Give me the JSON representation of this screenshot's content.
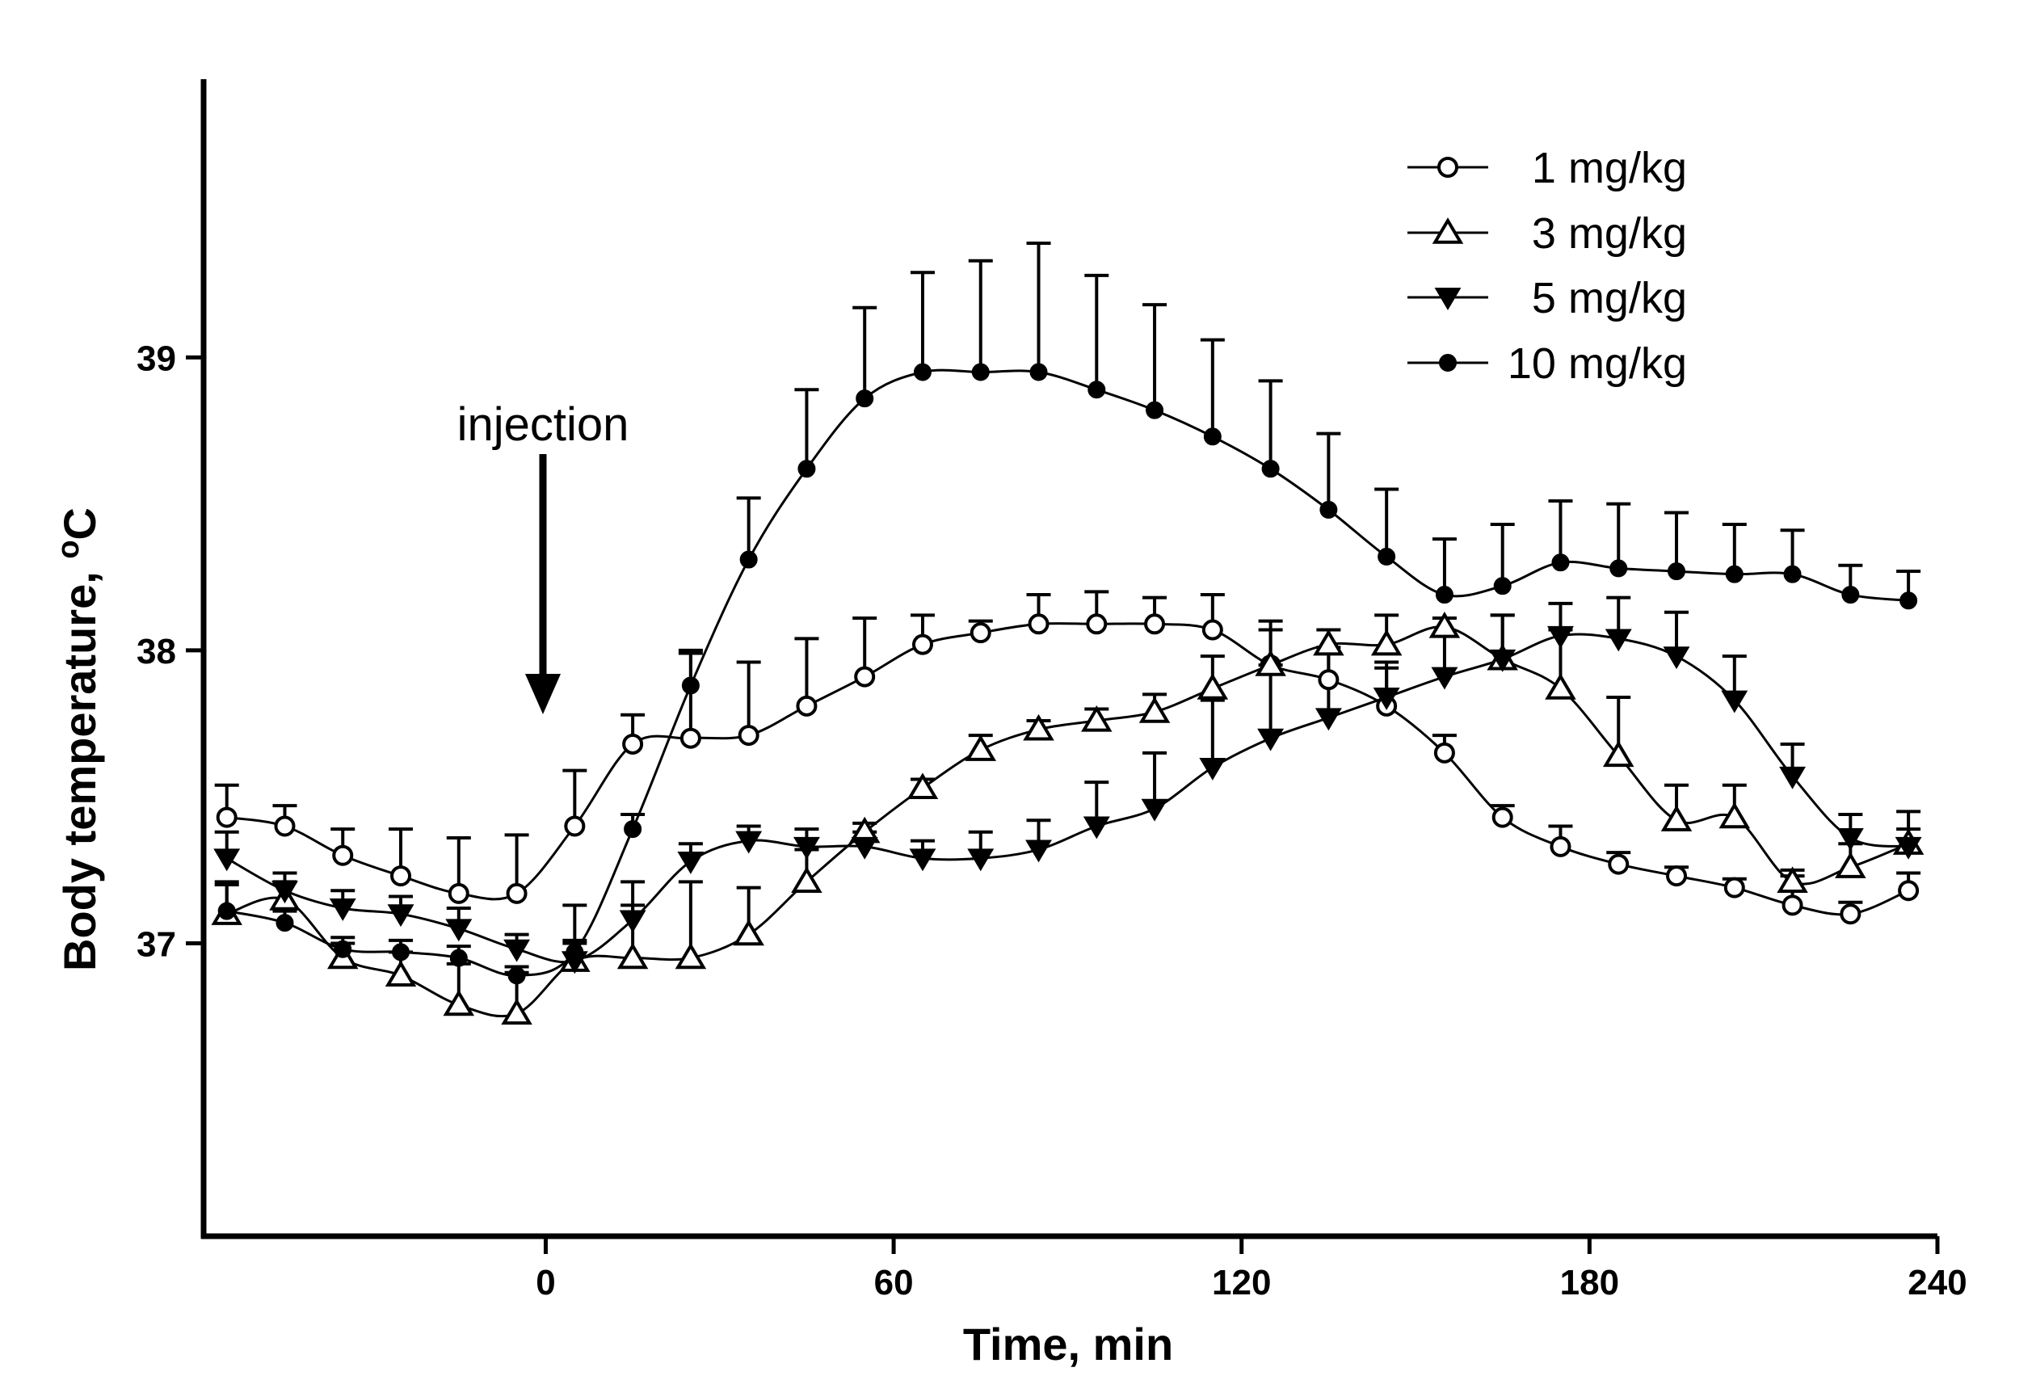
{
  "chart_data": {
    "type": "line",
    "title": "",
    "xlabel": "Time, min",
    "ylabel": "Body temperature, °C",
    "ylabel_main": "Body temperature, ",
    "ylabel_degree": "o",
    "ylabel_unit": "C",
    "xlim": [
      -59,
      240
    ],
    "ylim": [
      36,
      39.95
    ],
    "xticks": [
      0,
      60,
      120,
      180,
      240
    ],
    "xtick_labels": [
      "0",
      "60",
      "120",
      "180",
      "240"
    ],
    "yticks": [
      37,
      38,
      39
    ],
    "ytick_labels": [
      "37",
      "38",
      "39"
    ],
    "grid": false,
    "legend_position": "top-right",
    "annotation": {
      "text": "injection",
      "x": 0
    },
    "x": [
      -55,
      -45,
      -35,
      -25,
      -15,
      -5,
      5,
      15,
      25,
      35,
      45,
      55,
      65,
      75,
      85,
      95,
      105,
      115,
      125,
      135,
      145,
      155,
      165,
      175,
      185,
      195,
      205,
      215,
      225,
      235
    ],
    "series": [
      {
        "name": "1 mg/kg",
        "marker": "open-circle",
        "values": [
          37.43,
          37.4,
          37.3,
          37.23,
          37.17,
          37.17,
          37.4,
          37.68,
          37.7,
          37.71,
          37.81,
          37.91,
          38.02,
          38.06,
          38.09,
          38.09,
          38.09,
          38.07,
          37.95,
          37.9,
          37.81,
          37.65,
          37.43,
          37.33,
          37.27,
          37.23,
          37.19,
          37.13,
          37.1,
          37.18
        ],
        "errors": [
          0.11,
          0.07,
          0.09,
          0.16,
          0.19,
          0.2,
          0.19,
          0.1,
          0.29,
          0.25,
          0.23,
          0.2,
          0.1,
          0.04,
          0.1,
          0.11,
          0.09,
          0.12,
          0.15,
          0.09,
          0.13,
          0.06,
          0.04,
          0.07,
          0.04,
          0.03,
          0.03,
          0.1,
          0.04,
          0.06
        ]
      },
      {
        "name": "3 mg/kg",
        "marker": "open-triangle-up",
        "values": [
          37.1,
          37.15,
          36.95,
          36.89,
          36.79,
          36.76,
          36.94,
          36.95,
          36.95,
          37.03,
          37.21,
          37.38,
          37.53,
          37.66,
          37.73,
          37.76,
          37.79,
          37.87,
          37.95,
          38.02,
          38.02,
          38.08,
          37.97,
          37.87,
          37.64,
          37.42,
          37.43,
          37.21,
          37.26,
          37.34
        ],
        "errors": [
          0.1,
          0.06,
          0.05,
          0.08,
          0.14,
          0.14,
          0.19,
          0.26,
          0.26,
          0.16,
          0.11,
          0.03,
          0.03,
          0.05,
          0.03,
          0.04,
          0.06,
          0.11,
          0.12,
          0.05,
          0.1,
          0.03,
          0.15,
          0.2,
          0.2,
          0.12,
          0.11,
          0.04,
          0.08,
          0.05
        ]
      },
      {
        "name": "5 mg/kg",
        "marker": "filled-triangle-down",
        "values": [
          37.29,
          37.18,
          37.12,
          37.1,
          37.05,
          36.98,
          36.94,
          37.08,
          37.28,
          37.35,
          37.33,
          37.33,
          37.29,
          37.29,
          37.32,
          37.4,
          37.46,
          37.6,
          37.7,
          37.77,
          37.84,
          37.91,
          37.97,
          38.05,
          38.04,
          37.98,
          37.83,
          37.57,
          37.36,
          37.33
        ],
        "errors": [
          0.09,
          0.06,
          0.06,
          0.06,
          0.07,
          0.05,
          0.07,
          0.05,
          0.06,
          0.05,
          0.06,
          0.05,
          0.06,
          0.09,
          0.1,
          0.15,
          0.19,
          0.23,
          0.25,
          0.24,
          0.12,
          0.14,
          0.15,
          0.11,
          0.14,
          0.15,
          0.15,
          0.11,
          0.08,
          0.12
        ]
      },
      {
        "name": "10 mg/kg",
        "marker": "filled-circle",
        "values": [
          37.11,
          37.07,
          36.98,
          36.97,
          36.95,
          36.89,
          36.97,
          37.39,
          37.88,
          38.31,
          38.62,
          38.86,
          38.95,
          38.95,
          38.95,
          38.89,
          38.82,
          38.73,
          38.62,
          38.48,
          38.32,
          38.19,
          38.22,
          38.3,
          38.28,
          38.27,
          38.26,
          38.26,
          38.19,
          38.17
        ],
        "errors": [
          0.1,
          0.04,
          0.04,
          0.04,
          0.04,
          0.03,
          0.03,
          0.05,
          0.12,
          0.21,
          0.27,
          0.31,
          0.34,
          0.38,
          0.44,
          0.39,
          0.36,
          0.33,
          0.3,
          0.26,
          0.23,
          0.19,
          0.21,
          0.21,
          0.22,
          0.2,
          0.17,
          0.15,
          0.1,
          0.1
        ]
      }
    ]
  }
}
